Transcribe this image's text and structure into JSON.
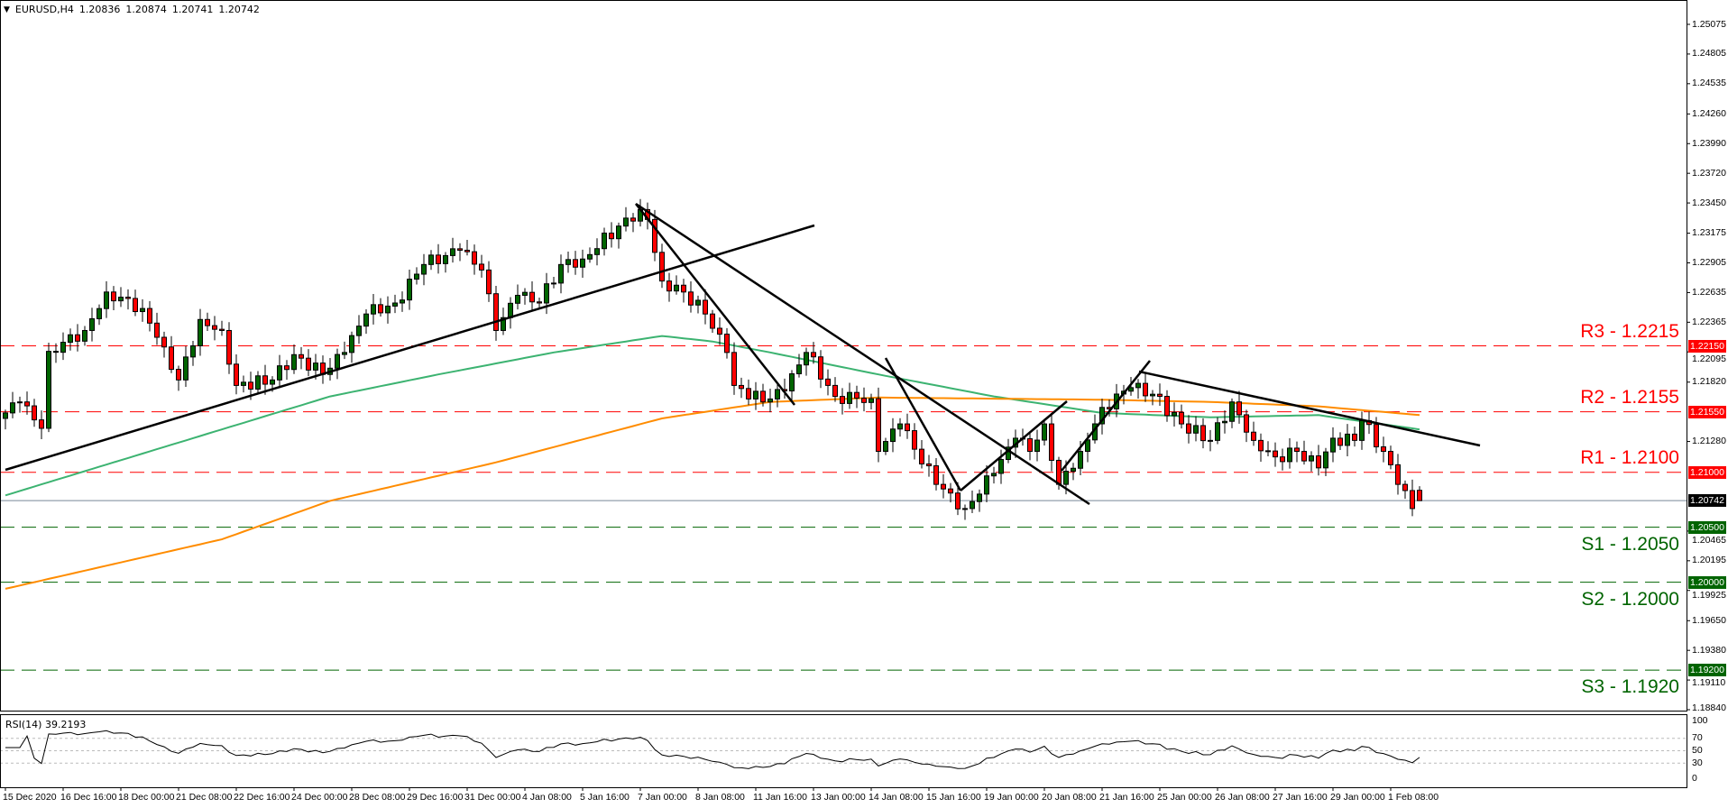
{
  "header": {
    "symbol": "EURUSD,H4",
    "open": "1.20836",
    "high": "1.20874",
    "low": "1.20741",
    "close": "1.20742"
  },
  "rsi_label": "RSI(14) 39.2193",
  "colors": {
    "bull": "#006400",
    "bear": "#ff0000",
    "resistance": "#ff0000",
    "support": "#006400",
    "ma_fast": "#3cb371",
    "ma_slow": "#ff8c00",
    "current": "#000000"
  },
  "levels": [
    {
      "name": "R3",
      "label": "R3 - 1.2215",
      "price": 1.2215,
      "badge": "1.22150",
      "type": "resistance"
    },
    {
      "name": "R2",
      "label": "R2 - 1.2155",
      "price": 1.2155,
      "badge": "1.21550",
      "type": "resistance"
    },
    {
      "name": "R1",
      "label": "R1 - 1.2100",
      "price": 1.21,
      "badge": "1.21000",
      "type": "resistance"
    },
    {
      "name": "S1",
      "label": "S1 - 1.2050",
      "price": 1.205,
      "badge": "1.20500",
      "type": "support"
    },
    {
      "name": "S2",
      "label": "S2 - 1.2000",
      "price": 1.2,
      "badge": "1.20000",
      "type": "support"
    },
    {
      "name": "S3",
      "label": "S3 - 1.1920",
      "price": 1.192,
      "badge": "1.19200",
      "type": "support"
    }
  ],
  "current_price": {
    "price": 1.20742,
    "badge": "1.20742"
  },
  "chart_data": {
    "type": "candlestick",
    "symbol": "EURUSD",
    "timeframe": "H4",
    "ylim": [
      1.1884,
      1.25075
    ],
    "y_ticks": [
      "1.25075",
      "1.24805",
      "1.24535",
      "1.24260",
      "1.23990",
      "1.23720",
      "1.23450",
      "1.23175",
      "1.22905",
      "1.22635",
      "1.22365",
      "1.22095",
      "1.21820",
      "1.21280",
      "1.20465",
      "1.20195",
      "1.19925",
      "1.19650",
      "1.19380",
      "1.19110",
      "1.18840"
    ],
    "x_labels": [
      "15 Dec 2020",
      "16 Dec 16:00",
      "18 Dec 00:00",
      "21 Dec 08:00",
      "22 Dec 16:00",
      "24 Dec 00:00",
      "28 Dec 08:00",
      "29 Dec 16:00",
      "31 Dec 00:00",
      "4 Jan 08:00",
      "5 Jan 16:00",
      "7 Jan 00:00",
      "8 Jan 08:00",
      "11 Jan 16:00",
      "13 Jan 00:00",
      "14 Jan 08:00",
      "15 Jan 16:00",
      "19 Jan 00:00",
      "20 Jan 08:00",
      "21 Jan 16:00",
      "25 Jan 00:00",
      "26 Jan 08:00",
      "27 Jan 16:00",
      "29 Jan 00:00",
      "1 Feb 08:00"
    ],
    "bars_per_label": 8,
    "bar_count": 197,
    "close_path": [
      [
        0,
        1.2154
      ],
      [
        2,
        1.2164
      ],
      [
        5,
        1.214
      ],
      [
        6,
        1.221
      ],
      [
        11,
        1.2229
      ],
      [
        14,
        1.2264
      ],
      [
        19,
        1.2249
      ],
      [
        22,
        1.2214
      ],
      [
        24,
        1.2184
      ],
      [
        27,
        1.2239
      ],
      [
        30,
        1.2229
      ],
      [
        32,
        1.2179
      ],
      [
        37,
        1.2184
      ],
      [
        40,
        1.2207
      ],
      [
        44,
        1.2189
      ],
      [
        47,
        1.2209
      ],
      [
        50,
        1.2244
      ],
      [
        54,
        1.2254
      ],
      [
        58,
        1.2289
      ],
      [
        63,
        1.2302
      ],
      [
        66,
        1.2284
      ],
      [
        68,
        1.2229
      ],
      [
        71,
        1.2261
      ],
      [
        74,
        1.2254
      ],
      [
        77,
        1.2289
      ],
      [
        80,
        1.2294
      ],
      [
        85,
        1.2324
      ],
      [
        88,
        1.2339
      ],
      [
        89,
        1.233
      ],
      [
        91,
        1.2274
      ],
      [
        94,
        1.2264
      ],
      [
        97,
        1.2244
      ],
      [
        100,
        1.2209
      ],
      [
        101,
        1.2179
      ],
      [
        105,
        1.2164
      ],
      [
        108,
        1.2174
      ],
      [
        111,
        1.2209
      ],
      [
        115,
        1.2169
      ],
      [
        120,
        1.2167
      ],
      [
        121,
        1.2119
      ],
      [
        124,
        1.2144
      ],
      [
        129,
        1.2089
      ],
      [
        133,
        1.2067
      ],
      [
        137,
        1.2099
      ],
      [
        140,
        1.2131
      ],
      [
        142,
        1.2119
      ],
      [
        144,
        1.2144
      ],
      [
        146,
        1.2089
      ],
      [
        149,
        1.2119
      ],
      [
        152,
        1.2159
      ],
      [
        156,
        1.2177
      ],
      [
        159,
        1.2171
      ],
      [
        163,
        1.2144
      ],
      [
        167,
        1.2129
      ],
      [
        170,
        1.2164
      ],
      [
        173,
        1.2129
      ],
      [
        176,
        1.2114
      ],
      [
        179,
        1.2119
      ],
      [
        182,
        1.2104
      ],
      [
        184,
        1.2131
      ],
      [
        187,
        1.2129
      ],
      [
        188,
        1.2147
      ],
      [
        191,
        1.2119
      ],
      [
        193,
        1.2089
      ],
      [
        195,
        1.2067
      ],
      [
        196,
        1.20742
      ]
    ],
    "ma_fast": [
      [
        0,
        1.2079
      ],
      [
        15,
        1.2109
      ],
      [
        30,
        1.2139
      ],
      [
        45,
        1.2169
      ],
      [
        60,
        1.2189
      ],
      [
        76,
        1.2209
      ],
      [
        91,
        1.2224
      ],
      [
        98,
        1.2219
      ],
      [
        106,
        1.2209
      ],
      [
        121,
        1.2189
      ],
      [
        137,
        1.2169
      ],
      [
        152,
        1.2154
      ],
      [
        167,
        1.215
      ],
      [
        182,
        1.2152
      ],
      [
        196,
        1.2139
      ]
    ],
    "ma_slow": [
      [
        0,
        1.1994
      ],
      [
        30,
        1.2039
      ],
      [
        45,
        1.2074
      ],
      [
        68,
        1.2109
      ],
      [
        91,
        1.2149
      ],
      [
        106,
        1.2164
      ],
      [
        121,
        1.2168
      ],
      [
        152,
        1.2166
      ],
      [
        167,
        1.2164
      ],
      [
        182,
        1.216
      ],
      [
        196,
        1.2152
      ]
    ],
    "rsi": {
      "period": 14,
      "last": 39.2193,
      "ylim": [
        0,
        100
      ],
      "levels": [
        70,
        50,
        30
      ],
      "tick_labels": [
        "100",
        "70",
        "50",
        "30",
        "0"
      ]
    }
  }
}
